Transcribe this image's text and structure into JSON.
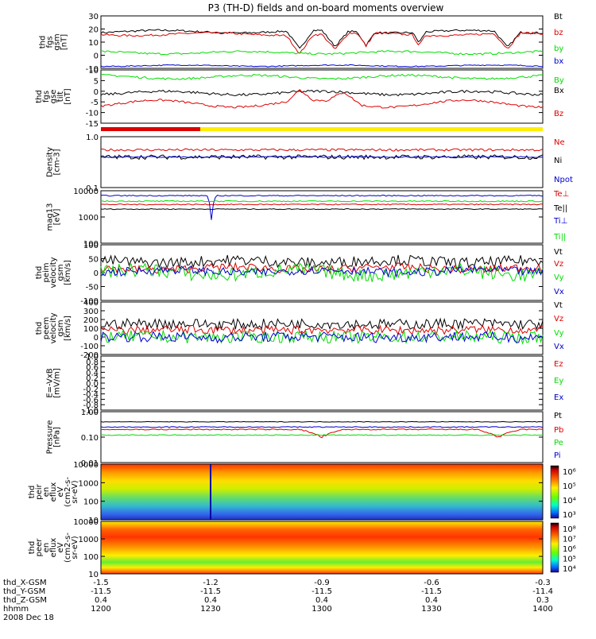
{
  "title": "P3 (TH-D) fields and on-board moments overview",
  "colors": {
    "black": "#000000",
    "red": "#dd0000",
    "green": "#00dd00",
    "blue": "#0000cc",
    "yellow": "#ffee00"
  },
  "chart_data": [
    {
      "type": "line",
      "id": "fgs",
      "ylabel": [
        "thd",
        "fgs",
        "gsm",
        "[nT]"
      ],
      "ylim": [
        -10,
        30
      ],
      "yticks": [
        "30",
        "20",
        "10",
        "0",
        "-10"
      ],
      "series": [
        {
          "name": "Bt",
          "color": "#000000"
        },
        {
          "name": "bz",
          "color": "#dd0000"
        },
        {
          "name": "by",
          "color": "#00dd00"
        },
        {
          "name": "bx",
          "color": "#0000cc"
        }
      ]
    },
    {
      "type": "line",
      "id": "fgs_tilt",
      "ylabel": [
        "thd",
        "fgs",
        "gse",
        "tilt",
        "[nT]"
      ],
      "ylim": [
        -18,
        12
      ],
      "yticks": [
        "10",
        "5",
        "0",
        "-5",
        "-10",
        "-15"
      ],
      "series": [
        {
          "name": "By",
          "color": "#00dd00"
        },
        {
          "name": "Bx",
          "color": "#000000"
        },
        {
          "name": "Bz",
          "color": "#dd0000"
        }
      ]
    },
    {
      "type": "line",
      "id": "density",
      "ylabel": [
        "Density",
        "[cm-3]"
      ],
      "log": true,
      "ylim": [
        0.1,
        1.0
      ],
      "yticks": [
        "1.0",
        "0.1"
      ],
      "series": [
        {
          "name": "Ne",
          "color": "#dd0000"
        },
        {
          "name": "Ni",
          "color": "#000000"
        },
        {
          "name": "Npot",
          "color": "#0000cc"
        }
      ]
    },
    {
      "type": "line",
      "id": "temp",
      "ylabel": [
        "mag13",
        "[eV]"
      ],
      "log": true,
      "ylim": [
        100,
        10000
      ],
      "yticks": [
        "10000",
        "1000",
        "100"
      ],
      "series": [
        {
          "name": "Te⊥",
          "color": "#dd0000"
        },
        {
          "name": "Te||",
          "color": "#000000"
        },
        {
          "name": "Ti⊥",
          "color": "#0000cc"
        },
        {
          "name": "Ti||",
          "color": "#00dd00"
        }
      ]
    },
    {
      "type": "line",
      "id": "peem_vel",
      "ylabel": [
        "thd",
        "peim",
        "velocity",
        "gsm",
        "[km/s]"
      ],
      "ylim": [
        -100,
        100
      ],
      "yticks": [
        "100",
        "50",
        "0",
        "-50",
        "-100"
      ],
      "series": [
        {
          "name": "Vt",
          "color": "#000000"
        },
        {
          "name": "Vz",
          "color": "#dd0000"
        },
        {
          "name": "Vy",
          "color": "#00dd00"
        },
        {
          "name": "Vx",
          "color": "#0000cc"
        }
      ]
    },
    {
      "type": "line",
      "id": "perm_vel",
      "ylabel": [
        "thd",
        "peem",
        "velocity",
        "gsm",
        "[km/s]"
      ],
      "ylim": [
        -200,
        400
      ],
      "yticks": [
        "400",
        "300",
        "200",
        "100",
        "0",
        "-100",
        "-200"
      ],
      "series": [
        {
          "name": "Vt",
          "color": "#000000"
        },
        {
          "name": "Vz",
          "color": "#dd0000"
        },
        {
          "name": "Vy",
          "color": "#00dd00"
        },
        {
          "name": "Vx",
          "color": "#0000cc"
        }
      ]
    },
    {
      "type": "line",
      "id": "efield",
      "ylabel": [
        "E=-VxB",
        "[mV/m]"
      ],
      "ylim": [
        -1.0,
        1.0
      ],
      "yticks": [
        "1.0",
        "0.8",
        "0.6",
        "0.4",
        "0.2",
        "0.0",
        "-0.2",
        "-0.4",
        "-0.6",
        "-0.8",
        "-1.0"
      ],
      "series": [
        {
          "name": "Ez",
          "color": "#dd0000"
        },
        {
          "name": "Ey",
          "color": "#00dd00"
        },
        {
          "name": "Ex",
          "color": "#0000cc"
        }
      ]
    },
    {
      "type": "line",
      "id": "pressure",
      "ylabel": [
        "Pressure",
        "[nPa]"
      ],
      "log": true,
      "ylim": [
        0.01,
        1.0
      ],
      "yticks": [
        "1.00",
        "0.10",
        "0.01"
      ],
      "series": [
        {
          "name": "Pt",
          "color": "#000000"
        },
        {
          "name": "Pb",
          "color": "#dd0000"
        },
        {
          "name": "Pe",
          "color": "#00dd00"
        },
        {
          "name": "Pi",
          "color": "#0000cc"
        }
      ]
    },
    {
      "type": "heatmap",
      "id": "peir",
      "ylabel": [
        "thd",
        "peir",
        "en",
        "eflux",
        "eV",
        "(cm2-s-",
        "sr-eV)"
      ],
      "log": true,
      "ylim": [
        10,
        10000
      ],
      "yticks": [
        "10000",
        "1000",
        "100",
        "10"
      ],
      "colorbar": [
        "10⁶",
        "10⁵",
        "10⁴",
        "10³"
      ]
    },
    {
      "type": "heatmap",
      "id": "peer",
      "ylabel": [
        "thd",
        "peer",
        "en",
        "eflux",
        "eV",
        "(cm2-s-",
        "sr-eV)"
      ],
      "log": true,
      "ylim": [
        10,
        10000
      ],
      "yticks": [
        "10000",
        "1000",
        "100",
        "10"
      ],
      "colorbar": [
        "10⁸",
        "10⁷",
        "10⁶",
        "10⁵",
        "10⁴"
      ]
    }
  ],
  "x_axis": {
    "labels": [
      "thd_X-GSM",
      "thd_Y-GSM",
      "thd_Z-GSM",
      "hhmm",
      "2008 Dec 18"
    ],
    "ticks": [
      {
        "x": "-1.5",
        "y": "-11.5",
        "z": "0.4",
        "t": "1200"
      },
      {
        "x": "-1.2",
        "y": "-11.5",
        "z": "0.4",
        "t": "1230"
      },
      {
        "x": "-0.9",
        "y": "-11.5",
        "z": "0.4",
        "t": "1300"
      },
      {
        "x": "-0.6",
        "y": "-11.5",
        "z": "0.4",
        "t": "1330"
      },
      {
        "x": "-0.3",
        "y": "-11.4",
        "z": "0.3",
        "t": "1400"
      }
    ]
  }
}
